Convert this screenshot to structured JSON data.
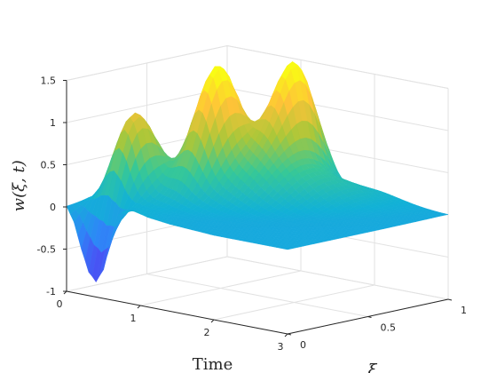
{
  "chart_data": {
    "type": "surface",
    "title": "",
    "xlabel": "Time",
    "ylabel": "ξ",
    "zlabel": "w(ξ, t)",
    "x_range": [
      0,
      3
    ],
    "y_range": [
      0,
      1
    ],
    "z_range": [
      -1,
      1.5
    ],
    "x_ticks": [
      0,
      1,
      2,
      3
    ],
    "x_tick_labels": [
      "0",
      "1",
      "2",
      "3"
    ],
    "y_ticks": [
      0,
      0.5,
      1
    ],
    "y_tick_labels": [
      "0",
      "0.5",
      "1"
    ],
    "z_ticks": [
      -1,
      -0.5,
      0,
      0.5,
      1,
      1.5
    ],
    "z_tick_labels": [
      "-1",
      "-0.5",
      "0",
      "0.5",
      "1",
      "1.5"
    ],
    "grid": true,
    "colormap": "parula",
    "boundary_profile_xi_0": {
      "t": [
        0,
        0.1,
        0.2,
        0.3,
        0.4,
        0.5,
        0.6,
        0.7,
        0.8,
        0.9,
        1.0,
        1.1,
        1.2,
        1.4,
        1.6,
        2.0,
        2.5,
        3.0
      ],
      "w": [
        0,
        -0.2,
        -0.55,
        -0.85,
        -0.95,
        -0.75,
        -0.35,
        0.0,
        0.08,
        0.1,
        0.08,
        0.06,
        0.05,
        0.03,
        0.02,
        0.0,
        0.0,
        0.0
      ]
    },
    "peaks": [
      {
        "t": 0.35,
        "xi": 0.25,
        "w": 1.05
      },
      {
        "t": 0.85,
        "xi": 0.55,
        "w": 1.2
      },
      {
        "t": 1.25,
        "xi": 0.85,
        "w": 1.35
      }
    ]
  }
}
